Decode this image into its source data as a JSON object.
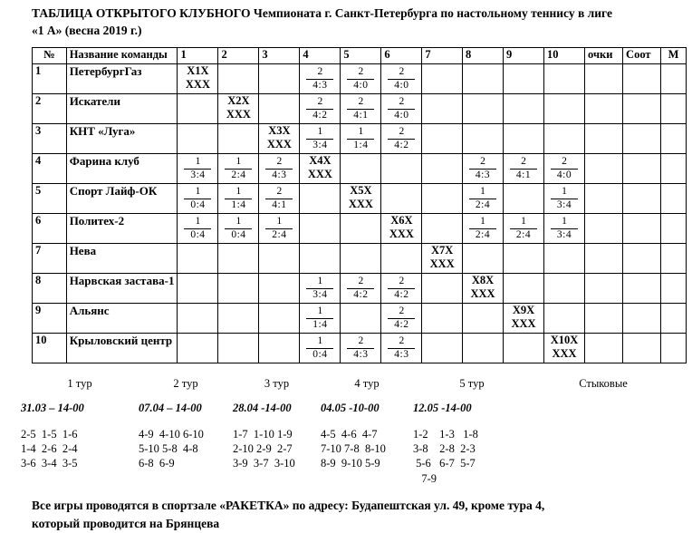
{
  "title_line1": "ТАБЛИЦА ОТКРЫТОГО КЛУБНОГО Чемпионата г. Санкт-Петербурга по настольному теннису в лиге",
  "title_line2": "«1 А»  (весна 2019 г.)",
  "table": {
    "headers": [
      "№",
      "Название команды",
      "1",
      "2",
      "3",
      "4",
      "5",
      "6",
      "7",
      "8",
      "9",
      "10",
      "очки",
      "Соот",
      "М"
    ],
    "rows": [
      {
        "num": "1",
        "name": "ПетербургГаз",
        "cells": {
          "1": {
            "diag": [
              "X1X",
              "XXX"
            ]
          },
          "4": {
            "frac": [
              "2",
              "4:3"
            ]
          },
          "5": {
            "frac": [
              "2",
              "4:0"
            ]
          },
          "6": {
            "frac": [
              "2",
              "4:0"
            ]
          }
        }
      },
      {
        "num": "2",
        "name": "Искатели",
        "cells": {
          "2": {
            "diag": [
              "X2X",
              "XXX"
            ]
          },
          "4": {
            "frac": [
              "2",
              "4:2"
            ]
          },
          "5": {
            "frac": [
              "2",
              "4:1"
            ]
          },
          "6": {
            "frac": [
              "2",
              "4:0"
            ]
          }
        }
      },
      {
        "num": "3",
        "name": "КНТ «Луга»",
        "cells": {
          "3": {
            "diag": [
              "X3X",
              "XXX"
            ]
          },
          "4": {
            "frac": [
              "1",
              "3:4"
            ]
          },
          "5": {
            "frac": [
              "1",
              "1:4"
            ]
          },
          "6": {
            "frac": [
              "2",
              "4:2"
            ]
          }
        }
      },
      {
        "num": "4",
        "name": "Фарина клуб",
        "cells": {
          "1": {
            "frac": [
              "1",
              "3:4"
            ]
          },
          "2": {
            "frac": [
              "1",
              "2:4"
            ]
          },
          "3": {
            "frac": [
              "2",
              "4:3"
            ]
          },
          "4": {
            "diag": [
              "X4X",
              "XXX"
            ]
          },
          "8": {
            "frac": [
              "2",
              "4:3"
            ]
          },
          "9": {
            "frac": [
              "2",
              "4:1"
            ]
          },
          "10": {
            "frac": [
              "2",
              "4:0"
            ]
          }
        }
      },
      {
        "num": "5",
        "name": "Спорт Лайф-ОК",
        "cells": {
          "1": {
            "frac": [
              "1",
              "0:4"
            ]
          },
          "2": {
            "frac": [
              "1",
              "1:4"
            ]
          },
          "3": {
            "frac": [
              "2",
              "4:1"
            ]
          },
          "5": {
            "diag": [
              "X5X",
              "XXX"
            ]
          },
          "8": {
            "frac": [
              "1",
              "2:4"
            ]
          },
          "10": {
            "frac": [
              "1",
              "3:4"
            ]
          }
        }
      },
      {
        "num": "6",
        "name": "Политех-2",
        "cells": {
          "1": {
            "frac": [
              "1",
              "0:4"
            ]
          },
          "2": {
            "frac": [
              "1",
              "0:4"
            ]
          },
          "3": {
            "frac": [
              "1",
              "2:4"
            ]
          },
          "6": {
            "diag": [
              "X6X",
              "XXX"
            ]
          },
          "8": {
            "frac": [
              "1",
              "2:4"
            ]
          },
          "9": {
            "frac": [
              "1",
              "2:4"
            ]
          },
          "10": {
            "frac": [
              "1",
              "3:4"
            ]
          }
        }
      },
      {
        "num": "7",
        "name": "Нева",
        "cells": {
          "7": {
            "diag": [
              "X7X",
              "XXX"
            ]
          }
        }
      },
      {
        "num": "8",
        "name": "Нарвская застава-1",
        "cells": {
          "4": {
            "frac": [
              "1",
              "3:4"
            ]
          },
          "5": {
            "frac": [
              "2",
              "4:2"
            ]
          },
          "6": {
            "frac": [
              "2",
              "4:2"
            ]
          },
          "8": {
            "diag": [
              "X8X",
              "XXX"
            ]
          }
        }
      },
      {
        "num": "9",
        "name": "Альянс",
        "cells": {
          "4": {
            "frac": [
              "1",
              "1:4"
            ]
          },
          "6": {
            "frac": [
              "2",
              "4:2"
            ]
          },
          "9": {
            "diag": [
              "X9X",
              "XXX"
            ]
          }
        }
      },
      {
        "num": "10",
        "name": "Крыловский центр",
        "cells": {
          "4": {
            "frac": [
              "1",
              "0:4"
            ]
          },
          "5": {
            "frac": [
              "2",
              "4:3"
            ]
          },
          "6": {
            "frac": [
              "2",
              "4:3"
            ]
          },
          "10": {
            "diag": [
              "X10X",
              "XXX"
            ]
          }
        }
      }
    ]
  },
  "tours": [
    {
      "label": "1 тур",
      "date": "31.03 – 14-00",
      "pairs": [
        "2-5  1-5  1-6",
        "1-4  2-6  2-4",
        "3-6  3-4  3-5"
      ]
    },
    {
      "label": "2 тур",
      "date": "07.04 – 14-00",
      "pairs": [
        "4-9  4-10 6-10",
        "5-10 5-8  4-8",
        "6-8  6-9"
      ]
    },
    {
      "label": "3 тур",
      "date": "28.04 -14-00",
      "pairs": [
        "1-7  1-10 1-9",
        "2-10 2-9  2-7",
        "3-9  3-7  3-10"
      ]
    },
    {
      "label": "4 тур",
      "date": "04.05 -10-00",
      "pairs": [
        "4-5  4-6  4-7",
        "7-10 7-8  8-10",
        "8-9  9-10 5-9"
      ]
    },
    {
      "label": "5 тур",
      "date": "12.05 -14-00",
      "pairs": [
        "1-2    1-3   1-8",
        "3-8    2-8  2-3",
        " 5-6   6-7  5-7",
        "   7-9"
      ]
    },
    {
      "label": "Стыковые",
      "date": "",
      "pairs": []
    }
  ],
  "footer_line1": "Все игры проводятся в спортзале «РАКЕТКА»  по адресу: Будапештская ул. 49, кроме тура  4,",
  "footer_line2": "который проводится на Брянцева"
}
